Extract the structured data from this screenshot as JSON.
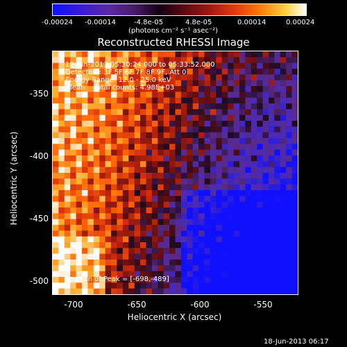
{
  "colorbar": {
    "tick_labels": [
      "-0.00024",
      "-0.00014",
      "-4.8e-05",
      "4.8e-05",
      "0.00014",
      "0.00024"
    ],
    "units": "(photons cm⁻² s⁻¹ asec⁻²)"
  },
  "chart_data": {
    "type": "heatmap",
    "title": "Reconstructed RHESSI Image",
    "xlabel": "Heliocentric X (arcsec)",
    "ylabel": "Heliocentric Y (arcsec)",
    "xlim": [
      -717,
      -523
    ],
    "ylim": [
      -512,
      -319
    ],
    "x_ticks": [
      -700,
      -650,
      -600,
      -550
    ],
    "y_ticks": [
      -350,
      -400,
      -450,
      -500
    ],
    "colorscale_range": [
      -0.00024,
      0.00024
    ],
    "annotations": [
      "18-Jun-2013 05:30:24.000 to 05:33:52.000",
      "Detectors: 3F 5F 6F 7F 8F 9F, Att 0",
      "Energy Range: 12.0 - 25.0 keV",
      "Clean    Total counts: 4.98E+03"
    ],
    "peak_label": "Position of Peak = [-698,-489]",
    "peak": [
      -698,
      -489
    ]
  },
  "footer": {
    "date": "18-Jun-2013 06:17"
  }
}
